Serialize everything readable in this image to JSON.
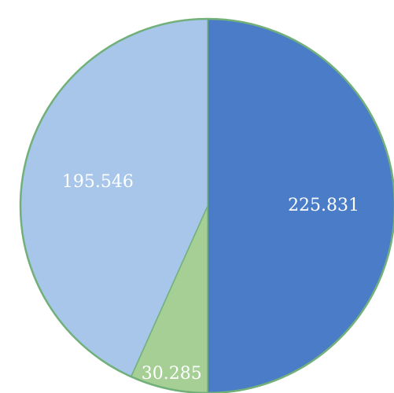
{
  "chart_data": {
    "type": "pie",
    "start_angle_deg": 0,
    "direction": "clockwise",
    "slices": [
      {
        "label": "225.831",
        "value": 225.831,
        "color": "#4a7cc8"
      },
      {
        "label": "30.285",
        "value": 30.285,
        "color": "#a5cf94"
      },
      {
        "label": "195.546",
        "value": 195.546,
        "color": "#a7c6ea"
      }
    ],
    "border_color": "#72b07a",
    "legend": "none",
    "title": ""
  }
}
